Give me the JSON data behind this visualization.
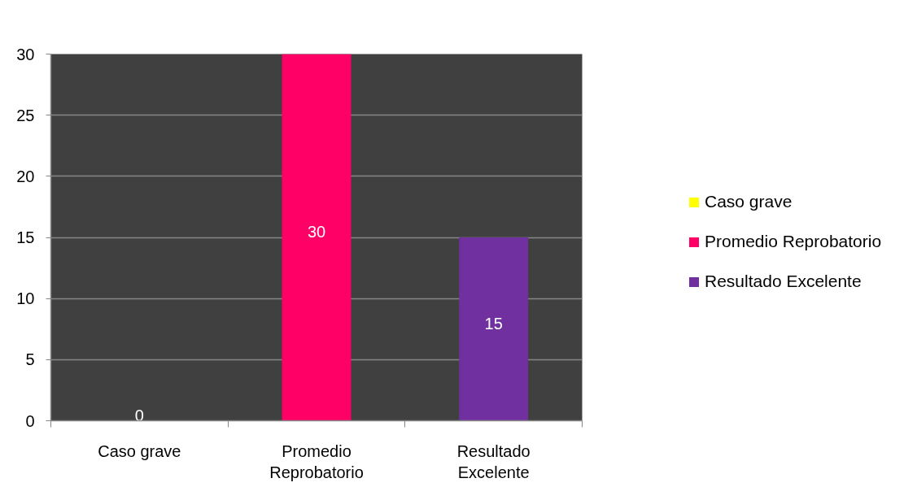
{
  "chart_data": {
    "type": "bar",
    "categories": [
      "Caso grave",
      "Promedio Reprobatorio",
      "Resultado Excelente"
    ],
    "series": [
      {
        "name": "Caso grave",
        "color": "#ffff00",
        "values": [
          0,
          null,
          null
        ]
      },
      {
        "name": "Promedio Reprobatorio",
        "color": "#ff0066",
        "values": [
          null,
          30,
          null
        ]
      },
      {
        "name": "Resultado Excelente",
        "color": "#7030a0",
        "values": [
          null,
          null,
          15
        ]
      }
    ],
    "ylim": [
      0,
      30
    ],
    "yticks": [
      0,
      5,
      10,
      15,
      20,
      25,
      30
    ],
    "grid": "y",
    "legend": "right",
    "data_labels": true
  }
}
